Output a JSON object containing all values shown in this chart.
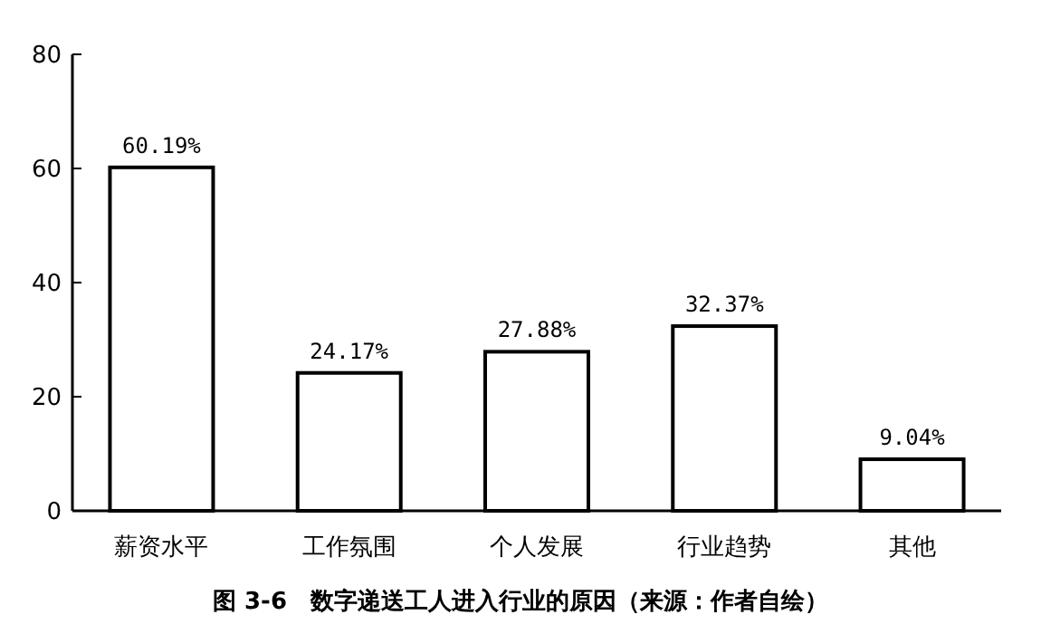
{
  "chart_data": {
    "type": "bar",
    "title": "图 3-6　数字递送工人进入行业的原因（来源：作者自绘）",
    "categories": [
      "薪资水平",
      "工作氛围",
      "个人发展",
      "行业趋势",
      "其他"
    ],
    "values": [
      60.19,
      24.17,
      27.88,
      32.37,
      9.04
    ],
    "value_labels": [
      "60.19%",
      "24.17%",
      "27.88%",
      "32.37%",
      "9.04%"
    ],
    "color": "#ffffff",
    "ylim": [
      0,
      80
    ],
    "yticks": [
      0,
      20,
      40,
      60,
      80
    ],
    "grid": false
  }
}
